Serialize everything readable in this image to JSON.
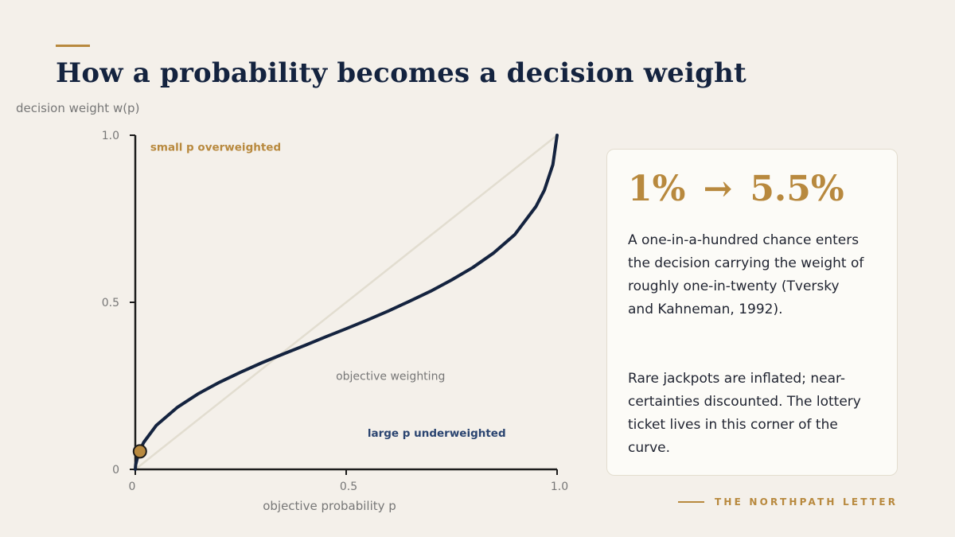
{
  "page": {
    "title": "How a probability becomes a decision weight",
    "brand": "THE NORTHPATH LETTER"
  },
  "card": {
    "stat_from": "1%",
    "stat_arrow": "→",
    "stat_to": "5.5%",
    "paragraph_1": "A one-in-a-hundred chance enters the decision carrying the weight of roughly one-in-twenty (Tversky and Kahneman, 1992).",
    "paragraph_2": "Rare jackpots are inflated; near-certainties discounted. The lottery ticket lives in this corner of the curve."
  },
  "chart_data": {
    "type": "line",
    "title": "How a probability becomes a decision weight",
    "xlabel": "objective probability p",
    "ylabel": "decision weight w(p)",
    "xlim": [
      0,
      1
    ],
    "ylim": [
      0,
      1
    ],
    "x_ticks": [
      "0",
      "0.5",
      "1.0"
    ],
    "y_ticks": [
      "0",
      "0.5",
      "1.0"
    ],
    "grid": false,
    "legend": "none",
    "series": [
      {
        "name": "",
        "color": "#14233f",
        "x": [
          0,
          0.001,
          0.005,
          0.01,
          0.02,
          0.05,
          0.1,
          0.15,
          0.2,
          0.25,
          0.3,
          0.35,
          0.4,
          0.45,
          0.5,
          0.55,
          0.6,
          0.65,
          0.7,
          0.75,
          0.8,
          0.85,
          0.9,
          0.95,
          0.97,
          0.99,
          1.0
        ],
        "y": [
          0,
          0.014,
          0.035,
          0.055,
          0.081,
          0.132,
          0.186,
          0.227,
          0.261,
          0.291,
          0.319,
          0.345,
          0.37,
          0.396,
          0.421,
          0.447,
          0.474,
          0.503,
          0.533,
          0.567,
          0.604,
          0.648,
          0.703,
          0.787,
          0.836,
          0.912,
          1.0
        ]
      },
      {
        "name": "objective weighting",
        "color": "#e2ddd0",
        "x": [
          0,
          1
        ],
        "y": [
          0,
          1
        ]
      }
    ],
    "highlight_point": {
      "x": 0.01,
      "y": 0.055,
      "color": "#b8893e"
    },
    "annotations": [
      {
        "text": "small p overweighted",
        "x": 0.03,
        "y": 0.965,
        "color": "#b8893e"
      },
      {
        "text": "objective weighting",
        "x": 0.47,
        "y": 0.28,
        "color": "#777777"
      },
      {
        "text": "large p underweighted",
        "x": 0.545,
        "y": 0.11,
        "color": "#2a4470"
      }
    ]
  }
}
